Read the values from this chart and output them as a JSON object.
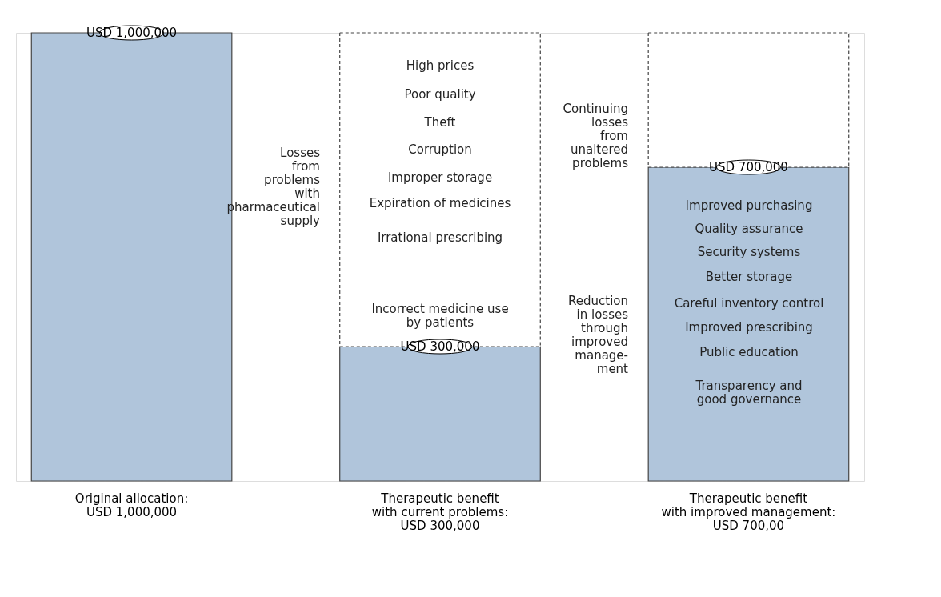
{
  "chart_data": {
    "type": "bar",
    "stacked": true,
    "categories": [
      "Original allocation:\nUSD 1,000,000",
      "Therapeutic benefit\nwith current problems:\nUSD 300,000",
      "Therapeutic benefit\nwith improved management:\nUSD 700,00"
    ],
    "series": [
      {
        "color": "#b0c5db",
        "values": [
          1000000,
          300000,
          700000
        ],
        "value_labels": [
          "USD 1,000,000",
          "USD 300,000",
          "USD 700,000"
        ]
      },
      {
        "color": "#ffffff",
        "line_style": "dashed",
        "values": [
          null,
          700000,
          300000
        ]
      }
    ],
    "annotations": [
      "Losses\nfrom\nproblems\nwith\npharmaceutical\nsupply",
      "Continuing\nlosses\nfrom\nunaltered\nproblems",
      "Reduction\nin losses\nthrough\nimproved\nmanage-\nment",
      "High prices",
      "Poor quality",
      "Theft",
      "Corruption",
      "Improper storage",
      "Expiration of medicines",
      "Irrational prescribing",
      "Incorrect medicine use\nby patients",
      "Improved purchasing",
      "Quality assurance",
      "Security systems",
      "Better storage",
      "Careful inventory control",
      "Improved prescribing",
      "Public education",
      "Transparency and\ngood governance"
    ]
  }
}
